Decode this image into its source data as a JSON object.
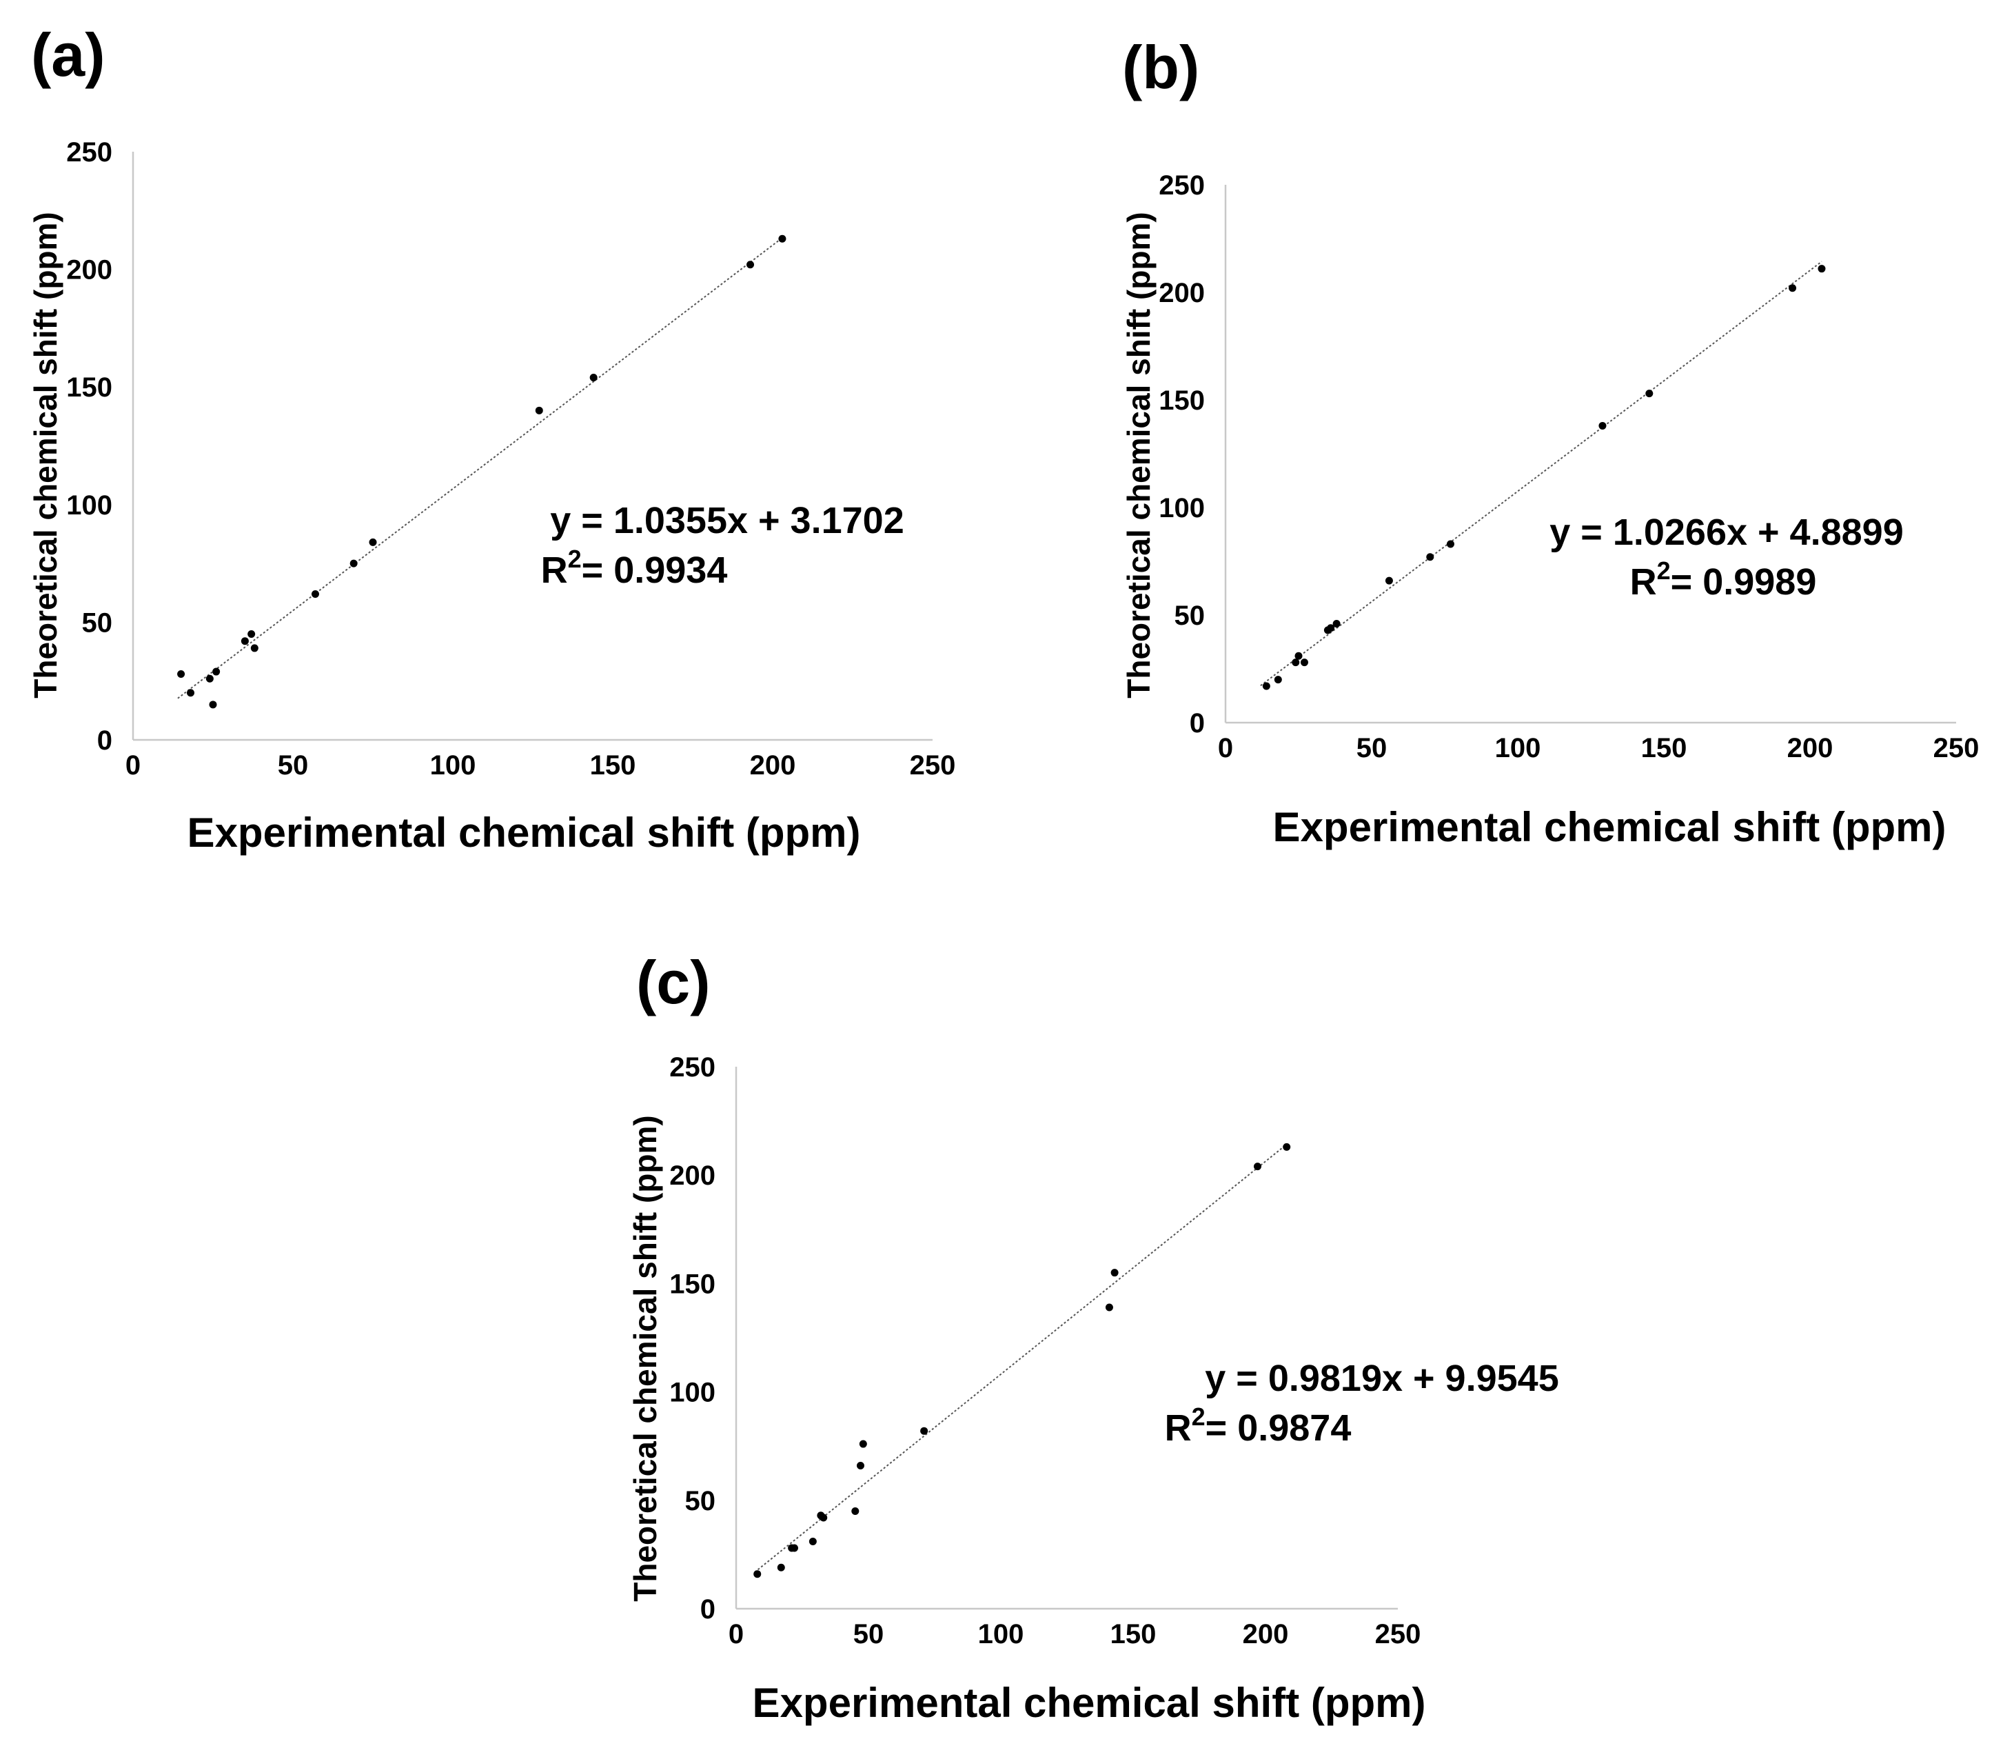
{
  "chart_data": [
    {
      "type": "scatter",
      "panel_label": "(a)",
      "xlabel": "Experimental chemical shift (ppm)",
      "ylabel": "Theoretical chemical shift (ppm)",
      "xlim": [
        0,
        250
      ],
      "ylim": [
        0,
        250
      ],
      "xticks": [
        "0",
        "50",
        "100",
        "150",
        "200",
        "250"
      ],
      "yticks": [
        "0",
        "50",
        "100",
        "150",
        "200",
        "250"
      ],
      "grid": false,
      "trendline": {
        "slope": 1.0355,
        "intercept": 3.1702,
        "x_range": [
          14,
          203
        ]
      },
      "equation": "y = 1.0355x + 3.1702",
      "r2_prefix": "R",
      "r2_sup": "2",
      "r2_value": "= 0.9934",
      "points": [
        {
          "x": 15,
          "y": 28
        },
        {
          "x": 18,
          "y": 20
        },
        {
          "x": 24,
          "y": 26
        },
        {
          "x": 26,
          "y": 29
        },
        {
          "x": 25,
          "y": 15
        },
        {
          "x": 35,
          "y": 42
        },
        {
          "x": 37,
          "y": 45
        },
        {
          "x": 38,
          "y": 39
        },
        {
          "x": 57,
          "y": 62
        },
        {
          "x": 69,
          "y": 75
        },
        {
          "x": 75,
          "y": 84
        },
        {
          "x": 127,
          "y": 140
        },
        {
          "x": 144,
          "y": 154
        },
        {
          "x": 193,
          "y": 202
        },
        {
          "x": 203,
          "y": 213
        }
      ]
    },
    {
      "type": "scatter",
      "panel_label": "(b)",
      "xlabel": "Experimental chemical shift (ppm)",
      "ylabel": "Theoretical chemical shift (ppm)",
      "xlim": [
        0,
        250
      ],
      "ylim": [
        0,
        250
      ],
      "xticks": [
        "0",
        "50",
        "100",
        "150",
        "200",
        "250"
      ],
      "yticks": [
        "0",
        "50",
        "100",
        "150",
        "200",
        "250"
      ],
      "grid": false,
      "trendline": {
        "slope": 1.0266,
        "intercept": 4.8899,
        "x_range": [
          12,
          204
        ]
      },
      "equation": "y = 1.0266x + 4.8899",
      "r2_prefix": "R",
      "r2_sup": "2",
      "r2_value": "= 0.9989",
      "points": [
        {
          "x": 14,
          "y": 17
        },
        {
          "x": 18,
          "y": 20
        },
        {
          "x": 24,
          "y": 28
        },
        {
          "x": 25,
          "y": 31
        },
        {
          "x": 27,
          "y": 28
        },
        {
          "x": 35,
          "y": 43
        },
        {
          "x": 36,
          "y": 44
        },
        {
          "x": 38,
          "y": 46
        },
        {
          "x": 56,
          "y": 66
        },
        {
          "x": 70,
          "y": 77
        },
        {
          "x": 77,
          "y": 83
        },
        {
          "x": 129,
          "y": 138
        },
        {
          "x": 145,
          "y": 153
        },
        {
          "x": 194,
          "y": 202
        },
        {
          "x": 204,
          "y": 211
        }
      ]
    },
    {
      "type": "scatter",
      "panel_label": "(c)",
      "xlabel": "Experimental chemical shift (ppm)",
      "ylabel": "Theoretical chemical shift (ppm)",
      "xlim": [
        0,
        250
      ],
      "ylim": [
        0,
        250
      ],
      "xticks": [
        "0",
        "50",
        "100",
        "150",
        "200",
        "250"
      ],
      "yticks": [
        "0",
        "50",
        "100",
        "150",
        "200",
        "250"
      ],
      "grid": false,
      "trendline": {
        "slope": 0.9819,
        "intercept": 9.9545,
        "x_range": [
          7,
          208
        ]
      },
      "equation": "y = 0.9819x + 9.9545",
      "r2_prefix": "R",
      "r2_sup": "2",
      "r2_value": "= 0.9874",
      "points": [
        {
          "x": 8,
          "y": 16
        },
        {
          "x": 17,
          "y": 19
        },
        {
          "x": 21,
          "y": 28
        },
        {
          "x": 22,
          "y": 28
        },
        {
          "x": 29,
          "y": 31
        },
        {
          "x": 32,
          "y": 43
        },
        {
          "x": 33,
          "y": 42
        },
        {
          "x": 45,
          "y": 45
        },
        {
          "x": 47,
          "y": 66
        },
        {
          "x": 48,
          "y": 76
        },
        {
          "x": 71,
          "y": 82
        },
        {
          "x": 141,
          "y": 139
        },
        {
          "x": 143,
          "y": 155
        },
        {
          "x": 197,
          "y": 204
        },
        {
          "x": 208,
          "y": 213
        }
      ]
    }
  ]
}
